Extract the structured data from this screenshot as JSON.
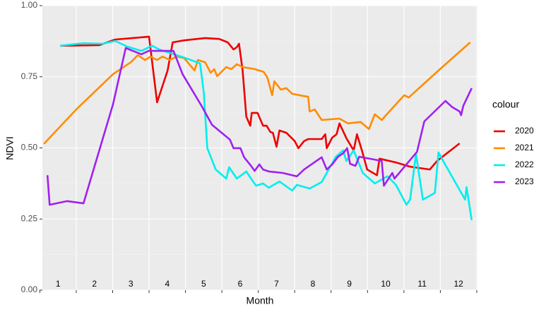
{
  "chart_data": {
    "type": "line",
    "x_label": "Month",
    "y_label": "NDVI",
    "legend_title": "colour",
    "legend": "right",
    "grid": true,
    "xlim": [
      0.57,
      12.52
    ],
    "xticks": [
      0.5,
      1.5,
      2.5,
      3.5,
      4.5,
      5.5,
      6.5,
      7.5,
      8.5,
      9.5,
      10.5,
      11.5,
      12.5
    ],
    "ylim": [
      0,
      1
    ],
    "yticks": [
      {
        "value": 0,
        "label": "0.00"
      },
      {
        "value": 0.25,
        "label": "0.25"
      },
      {
        "value": 0.5,
        "label": "0.50"
      },
      {
        "value": 0.75,
        "label": "0.75"
      },
      {
        "value": 1,
        "label": "1.00"
      }
    ],
    "annotations": [
      {
        "x": 1,
        "text": "1"
      },
      {
        "x": 2,
        "text": "2"
      },
      {
        "x": 3,
        "text": "3"
      },
      {
        "x": 4,
        "text": "4"
      },
      {
        "x": 5,
        "text": "5"
      },
      {
        "x": 6,
        "text": "6"
      },
      {
        "x": 7,
        "text": "7"
      },
      {
        "x": 8,
        "text": "8"
      },
      {
        "x": 9,
        "text": "9"
      },
      {
        "x": 10,
        "text": "10"
      },
      {
        "x": 11,
        "text": "11"
      },
      {
        "x": 12,
        "text": "12"
      }
    ],
    "series": [
      {
        "name": "2020",
        "color": "#ee0000",
        "x": [
          1.06,
          2.13,
          2.57,
          3.5,
          3.72,
          4.01,
          4.15,
          4.46,
          5.04,
          5.43,
          5.66,
          5.82,
          5.91,
          5.97,
          6.07,
          6.17,
          6.28,
          6.32,
          6.48,
          6.63,
          6.73,
          6.83,
          6.9,
          7.0,
          7.08,
          7.27,
          7.5,
          7.6,
          7.76,
          7.87,
          8.24,
          8.34,
          8.38,
          8.53,
          8.65,
          8.73,
          8.92,
          9.12,
          9.21,
          9.35,
          9.49,
          9.76,
          9.83,
          10.28,
          10.67,
          11.21,
          11.41,
          12.03
        ],
        "values": [
          0.859,
          0.861,
          0.881,
          0.891,
          0.66,
          0.772,
          0.871,
          0.878,
          0.886,
          0.883,
          0.871,
          0.846,
          0.854,
          0.866,
          0.772,
          0.61,
          0.578,
          0.623,
          0.623,
          0.578,
          0.578,
          0.556,
          0.553,
          0.504,
          0.561,
          0.553,
          0.524,
          0.499,
          0.524,
          0.531,
          0.531,
          0.548,
          0.499,
          0.536,
          0.548,
          0.586,
          0.534,
          0.491,
          0.548,
          0.489,
          0.424,
          0.404,
          0.462,
          0.449,
          0.434,
          0.424,
          0.454,
          0.516
        ]
      },
      {
        "name": "2021",
        "color": "#ff8c00",
        "x": [
          0.61,
          1.5,
          2.51,
          3.0,
          3.19,
          3.39,
          3.54,
          3.72,
          3.87,
          4.07,
          4.26,
          4.46,
          4.75,
          4.84,
          5.04,
          5.19,
          5.29,
          5.37,
          5.62,
          5.76,
          5.91,
          6.07,
          6.4,
          6.65,
          6.75,
          6.88,
          6.94,
          7.12,
          7.27,
          7.43,
          7.76,
          7.87,
          7.91,
          8.05,
          8.24,
          8.73,
          8.96,
          9.31,
          9.54,
          9.7,
          9.89,
          10.28,
          10.51,
          10.63,
          11.45,
          12.32
        ],
        "values": [
          0.514,
          0.635,
          0.759,
          0.801,
          0.826,
          0.809,
          0.821,
          0.809,
          0.821,
          0.809,
          0.821,
          0.816,
          0.772,
          0.809,
          0.801,
          0.764,
          0.777,
          0.752,
          0.784,
          0.777,
          0.794,
          0.784,
          0.777,
          0.767,
          0.747,
          0.685,
          0.734,
          0.705,
          0.71,
          0.69,
          0.682,
          0.68,
          0.628,
          0.635,
          0.598,
          0.603,
          0.586,
          0.591,
          0.566,
          0.618,
          0.598,
          0.653,
          0.685,
          0.677,
          0.772,
          0.871
        ]
      },
      {
        "name": "2022",
        "color": "#00eeee",
        "x": [
          1.06,
          1.7,
          2.22,
          2.57,
          2.9,
          3.29,
          3.58,
          3.78,
          4.5,
          4.9,
          5.0,
          5.1,
          5.33,
          5.62,
          5.7,
          5.91,
          6.17,
          6.3,
          6.44,
          6.63,
          6.79,
          7.08,
          7.43,
          7.56,
          7.91,
          8.24,
          8.63,
          8.83,
          8.92,
          9.12,
          9.37,
          9.7,
          10.05,
          10.28,
          10.57,
          10.67,
          10.83,
          11.02,
          11.35,
          11.45,
          11.6,
          12.18,
          12.22,
          12.36
        ],
        "values": [
          0.859,
          0.868,
          0.866,
          0.876,
          0.856,
          0.841,
          0.859,
          0.846,
          0.816,
          0.797,
          0.697,
          0.499,
          0.424,
          0.392,
          0.432,
          0.392,
          0.417,
          0.392,
          0.367,
          0.375,
          0.36,
          0.382,
          0.35,
          0.37,
          0.357,
          0.38,
          0.469,
          0.491,
          0.454,
          0.491,
          0.412,
          0.375,
          0.4,
          0.37,
          0.3,
          0.318,
          0.479,
          0.318,
          0.342,
          0.484,
          0.449,
          0.318,
          0.362,
          0.246
        ]
      },
      {
        "name": "2023",
        "color": "#a020f0",
        "x": [
          0.71,
          0.77,
          1.25,
          1.7,
          2.51,
          2.86,
          3.29,
          3.49,
          4.17,
          4.42,
          4.94,
          5.23,
          5.72,
          5.82,
          6.01,
          6.11,
          6.3,
          6.4,
          6.53,
          6.63,
          6.79,
          7.17,
          7.56,
          7.76,
          8.24,
          8.38,
          8.53,
          8.69,
          8.83,
          8.94,
          9.02,
          9.17,
          9.27,
          9.89,
          9.95,
          10.18,
          10.24,
          10.86,
          11.06,
          11.64,
          11.83,
          12.03,
          12.07,
          12.13,
          12.36
        ],
        "values": [
          0.404,
          0.3,
          0.313,
          0.305,
          0.653,
          0.851,
          0.829,
          0.841,
          0.841,
          0.759,
          0.648,
          0.581,
          0.529,
          0.499,
          0.499,
          0.467,
          0.437,
          0.419,
          0.442,
          0.424,
          0.417,
          0.412,
          0.4,
          0.424,
          0.467,
          0.424,
          0.442,
          0.469,
          0.481,
          0.499,
          0.444,
          0.437,
          0.469,
          0.454,
          0.367,
          0.412,
          0.392,
          0.486,
          0.593,
          0.665,
          0.643,
          0.628,
          0.615,
          0.648,
          0.71
        ]
      }
    ]
  }
}
